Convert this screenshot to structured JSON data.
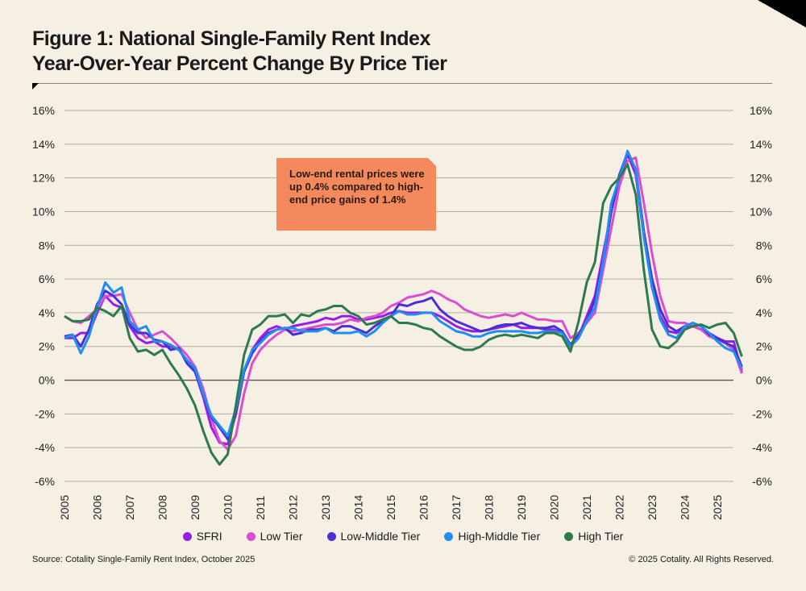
{
  "title_line1": "Figure 1: National Single-Family Rent Index",
  "title_line2": "Year-Over-Year Percent Change By Price Tier",
  "annotation": "Low-end rental prices were up 0.4% compared to high-end price gains of 1.4%",
  "source": "Source: Cotality Single-Family Rent Index, October 2025",
  "copyright": "© 2025 Cotality. All Rights Reserved.",
  "background_color": "#f6efe3",
  "annotation_color": "#f4895d",
  "chart_data": {
    "type": "line",
    "title": "Figure 1: National Single-Family Rent Index Year-Over-Year Percent Change By Price Tier",
    "xlabel": "",
    "ylabel": "",
    "xlim": [
      2005,
      2025.75
    ],
    "ylim": [
      -6,
      16
    ],
    "y_ticks": [
      "16%",
      "14%",
      "12%",
      "10%",
      "8%",
      "6%",
      "4%",
      "2%",
      "0%",
      "-2%",
      "-4%",
      "-6%"
    ],
    "y_tick_values": [
      16,
      14,
      12,
      10,
      8,
      6,
      4,
      2,
      0,
      -2,
      -4,
      -6
    ],
    "x_ticks": [
      "2005",
      "2006",
      "2007",
      "2008",
      "2009",
      "2010",
      "2011",
      "2012",
      "2013",
      "2014",
      "2015",
      "2016",
      "2017",
      "2018",
      "2019",
      "2020",
      "2021",
      "2022",
      "2023",
      "2024",
      "2025"
    ],
    "grid": true,
    "legend_position": "bottom",
    "x_step": "quarterly from 2005.0 to 2025.75",
    "series": [
      {
        "name": "SFRI",
        "color": "#9a1de6",
        "values": [
          2.5,
          2.5,
          2.8,
          2.8,
          4.0,
          5.0,
          4.5,
          4.3,
          3.2,
          2.5,
          2.2,
          2.3,
          2.0,
          2.0,
          1.8,
          1.2,
          0.5,
          -1.0,
          -2.8,
          -3.7,
          -3.8,
          -2.0,
          0.5,
          1.8,
          2.5,
          3.0,
          3.2,
          3.0,
          3.2,
          3.3,
          3.4,
          3.5,
          3.7,
          3.6,
          3.8,
          3.8,
          3.6,
          3.6,
          3.7,
          3.8,
          4.0,
          4.1,
          4.0,
          4.0,
          4.0,
          4.0,
          3.8,
          3.5,
          3.2,
          3.0,
          2.9,
          2.9,
          3.0,
          3.1,
          3.2,
          3.3,
          3.1,
          3.1,
          3.1,
          3.0,
          3.0,
          2.8,
          2.0,
          2.6,
          3.8,
          5.0,
          7.5,
          10.0,
          12.0,
          13.4,
          12.2,
          8.5,
          5.5,
          3.8,
          2.9,
          2.8,
          3.2,
          3.2,
          3.0,
          2.8,
          2.5,
          2.3,
          2.3,
          0.5
        ]
      },
      {
        "name": "Low Tier",
        "color": "#d94fd0",
        "values": [
          3.8,
          3.5,
          3.4,
          3.8,
          4.2,
          5.0,
          5.0,
          5.1,
          4.0,
          3.0,
          2.5,
          2.7,
          2.9,
          2.5,
          2.0,
          1.5,
          0.8,
          -0.5,
          -2.3,
          -3.6,
          -4.1,
          -3.3,
          -0.8,
          1.0,
          1.8,
          2.3,
          2.7,
          3.0,
          2.9,
          3.0,
          3.1,
          3.2,
          3.3,
          3.3,
          3.4,
          3.6,
          3.5,
          3.7,
          3.8,
          4.0,
          4.4,
          4.6,
          4.9,
          5.0,
          5.1,
          5.3,
          5.1,
          4.8,
          4.6,
          4.2,
          4.0,
          3.8,
          3.7,
          3.8,
          3.9,
          3.8,
          4.0,
          3.8,
          3.6,
          3.6,
          3.5,
          3.5,
          2.5,
          2.8,
          3.4,
          4.0,
          6.5,
          9.0,
          11.5,
          13.0,
          13.2,
          10.5,
          7.5,
          5.0,
          3.5,
          3.4,
          3.4,
          3.2,
          3.0,
          2.6,
          2.4,
          2.2,
          1.8,
          0.4
        ]
      },
      {
        "name": "Low-Middle Tier",
        "color": "#4a2fd6",
        "values": [
          2.6,
          2.7,
          2.0,
          3.0,
          4.5,
          5.3,
          5.0,
          4.5,
          3.3,
          2.8,
          2.8,
          2.4,
          2.3,
          1.8,
          1.9,
          1.0,
          0.5,
          -0.8,
          -2.2,
          -2.8,
          -3.5,
          -2.0,
          0.5,
          1.6,
          2.3,
          2.8,
          3.0,
          3.1,
          2.7,
          2.8,
          3.0,
          3.0,
          3.1,
          2.9,
          3.2,
          3.2,
          3.0,
          2.8,
          3.2,
          3.5,
          3.8,
          4.5,
          4.4,
          4.6,
          4.7,
          4.9,
          4.2,
          3.8,
          3.5,
          3.3,
          3.1,
          2.9,
          3.0,
          3.2,
          3.3,
          3.3,
          3.4,
          3.2,
          3.1,
          3.1,
          3.2,
          2.9,
          2.1,
          2.7,
          3.5,
          4.8,
          7.0,
          10.0,
          12.2,
          13.5,
          12.5,
          8.8,
          6.0,
          4.2,
          3.2,
          2.9,
          3.2,
          3.4,
          3.2,
          2.7,
          2.5,
          2.2,
          2.0,
          0.8
        ]
      },
      {
        "name": "High-Middle Tier",
        "color": "#1e8ff0",
        "values": [
          2.5,
          2.7,
          1.6,
          2.6,
          4.3,
          5.8,
          5.2,
          5.5,
          3.5,
          3.0,
          3.2,
          2.3,
          2.3,
          2.1,
          1.8,
          1.2,
          0.7,
          -0.8,
          -2.1,
          -2.7,
          -3.3,
          -1.7,
          0.6,
          1.8,
          2.2,
          2.7,
          3.0,
          3.1,
          3.1,
          2.9,
          2.9,
          2.9,
          3.1,
          2.8,
          2.8,
          2.8,
          2.9,
          2.6,
          2.9,
          3.4,
          3.8,
          4.1,
          3.9,
          3.9,
          4.0,
          4.0,
          3.5,
          3.2,
          2.9,
          2.8,
          2.6,
          2.6,
          2.8,
          2.9,
          2.9,
          2.9,
          2.9,
          2.8,
          2.8,
          2.9,
          2.9,
          2.8,
          2.0,
          2.5,
          3.5,
          4.3,
          7.0,
          10.5,
          12.0,
          13.6,
          12.5,
          8.5,
          5.5,
          3.6,
          2.7,
          2.5,
          3.2,
          3.4,
          3.2,
          2.8,
          2.3,
          1.9,
          1.7,
          0.7
        ]
      },
      {
        "name": "High Tier",
        "color": "#2e7a4f",
        "values": [
          3.8,
          3.5,
          3.5,
          3.6,
          4.3,
          4.1,
          3.8,
          4.4,
          2.5,
          1.7,
          1.8,
          1.5,
          1.8,
          1.0,
          0.3,
          -0.5,
          -1.5,
          -3.0,
          -4.3,
          -5.0,
          -4.4,
          -1.5,
          1.5,
          3.0,
          3.3,
          3.8,
          3.8,
          3.9,
          3.4,
          3.9,
          3.8,
          4.1,
          4.2,
          4.4,
          4.4,
          4.0,
          3.8,
          3.3,
          3.4,
          3.6,
          3.8,
          3.4,
          3.4,
          3.3,
          3.1,
          3.0,
          2.6,
          2.3,
          2.0,
          1.8,
          1.8,
          2.0,
          2.4,
          2.6,
          2.7,
          2.6,
          2.7,
          2.6,
          2.5,
          2.8,
          2.8,
          2.6,
          1.7,
          3.5,
          5.8,
          7.0,
          10.5,
          11.5,
          12.0,
          12.8,
          11.0,
          6.5,
          3.0,
          2.0,
          1.9,
          2.3,
          3.0,
          3.2,
          3.3,
          3.1,
          3.3,
          3.4,
          2.8,
          1.4
        ]
      }
    ]
  }
}
